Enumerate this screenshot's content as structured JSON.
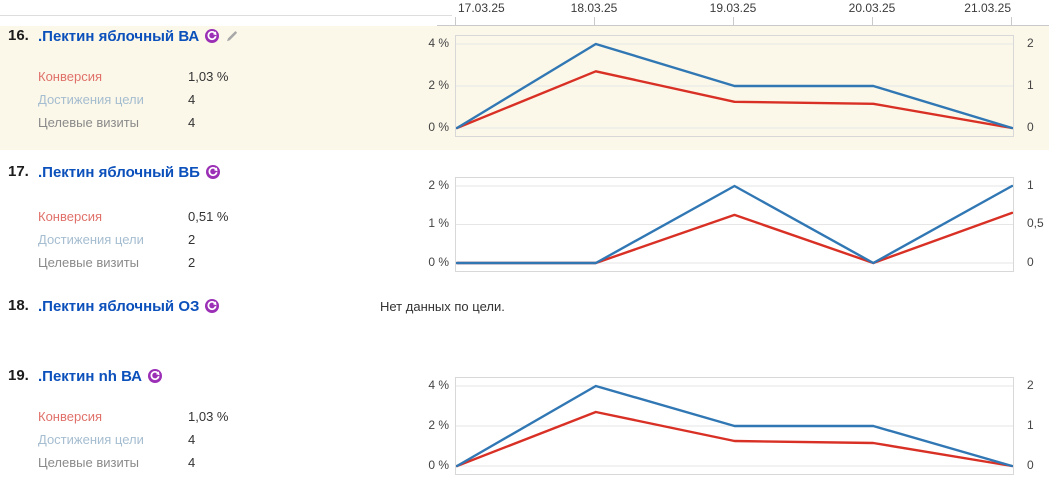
{
  "dates": [
    "17.03.25",
    "18.03.25",
    "19.03.25",
    "20.03.25",
    "21.03.25"
  ],
  "colors": {
    "goal_link_blue": "#0b50bb",
    "conversion_label_red": "#e0716a",
    "reaches_label_blue": "#a5bdd0",
    "visits_label_gray": "#8a8a8a",
    "line_red": "#d93025",
    "line_blue": "#3077b4",
    "row_highlight_cream": "#fbf8e9",
    "gridline": "#e6e6e6",
    "retarget_icon_purple": "#9b2fb5",
    "pencil_icon_gray": "#a8a8a8"
  },
  "rows": [
    {
      "num": "16.",
      "title": ".Пектин яблочный ВА",
      "icons": [
        "retarget-circle-icon",
        "edit-pencil-icon"
      ],
      "stats": {
        "conversion_label": "Конверсия",
        "conversion_value": "1,03 %",
        "reaches_label": "Достижения цели",
        "reaches_value": "4",
        "visits_label": "Целевые визиты",
        "visits_value": "4"
      }
    },
    {
      "num": "17.",
      "title": ".Пектин яблочный ВБ",
      "icons": [
        "retarget-circle-icon"
      ],
      "stats": {
        "conversion_label": "Конверсия",
        "conversion_value": "0,51 %",
        "reaches_label": "Достижения цели",
        "reaches_value": "2",
        "visits_label": "Целевые визиты",
        "visits_value": "2"
      }
    },
    {
      "num": "18.",
      "title": ".Пектин яблочный ОЗ",
      "icons": [
        "retarget-circle-icon"
      ],
      "no_data": "Нет данных по цели."
    },
    {
      "num": "19.",
      "title": ".Пектин nh ВА",
      "icons": [
        "retarget-circle-icon"
      ],
      "stats": {
        "conversion_label": "Конверсия",
        "conversion_value": "1,03 %",
        "reaches_label": "Достижения цели",
        "reaches_value": "4",
        "visits_label": "Целевые визиты",
        "visits_value": "4"
      }
    }
  ],
  "chart_data": [
    {
      "type": "line",
      "categories": [
        "17.03.25",
        "18.03.25",
        "19.03.25",
        "20.03.25",
        "21.03.25"
      ],
      "left_axis": {
        "max": 4,
        "min": 0,
        "ticks": [
          "4 %",
          "2 %",
          "0 %"
        ]
      },
      "right_axis": {
        "max": 2,
        "min": 0,
        "ticks": [
          "2",
          "1",
          "0"
        ]
      },
      "grid": true,
      "series": [
        {
          "name": "Конверсия",
          "axis": "left",
          "color": "#d93025",
          "values": [
            0,
            2.7,
            1.25,
            1.15,
            0
          ]
        },
        {
          "name": "Достижения цели",
          "axis": "right",
          "color": "#3077b4",
          "values": [
            0,
            2,
            1,
            1,
            0
          ]
        }
      ]
    },
    {
      "type": "line",
      "categories": [
        "17.03.25",
        "18.03.25",
        "19.03.25",
        "20.03.25",
        "21.03.25"
      ],
      "left_axis": {
        "max": 2,
        "min": 0,
        "ticks": [
          "2 %",
          "1 %",
          "0 %"
        ]
      },
      "right_axis": {
        "max": 1,
        "min": 0,
        "ticks": [
          "1",
          "0,5",
          "0"
        ]
      },
      "grid": true,
      "series": [
        {
          "name": "Конверсия",
          "axis": "left",
          "color": "#d93025",
          "values": [
            0,
            0,
            1.25,
            0,
            1.3
          ]
        },
        {
          "name": "Достижения цели",
          "axis": "right",
          "color": "#3077b4",
          "values": [
            0,
            0,
            1,
            0,
            1
          ]
        }
      ]
    },
    {
      "type": "line",
      "categories": [
        "17.03.25",
        "18.03.25",
        "19.03.25",
        "20.03.25",
        "21.03.25"
      ],
      "left_axis": {
        "max": 4,
        "min": 0,
        "ticks": [
          "4 %",
          "2 %",
          "0 %"
        ]
      },
      "right_axis": {
        "max": 2,
        "min": 0,
        "ticks": [
          "2",
          "1",
          "0"
        ]
      },
      "grid": true,
      "series": [
        {
          "name": "Конверсия",
          "axis": "left",
          "color": "#d93025",
          "values": [
            0,
            2.7,
            1.25,
            1.15,
            0
          ]
        },
        {
          "name": "Достижения цели",
          "axis": "right",
          "color": "#3077b4",
          "values": [
            0,
            2,
            1,
            1,
            0
          ]
        }
      ]
    }
  ]
}
